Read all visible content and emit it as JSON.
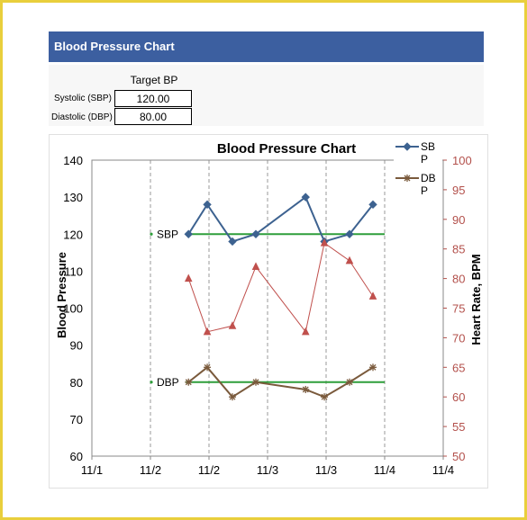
{
  "header": {
    "title": "Blood Pressure Chart"
  },
  "target": {
    "header": "Target BP",
    "systolic_label": "Systolic (SBP)",
    "systolic_value": "120.00",
    "diastolic_label": "Diastolic (DBP)",
    "diastolic_value": "80.00"
  },
  "chart_data": {
    "type": "line",
    "title": "Blood Pressure Chart",
    "ylabel": "Blood Pressure",
    "y2label": "Heart Rate, BPM",
    "ylim": [
      60,
      140
    ],
    "y2lim": [
      50,
      100
    ],
    "xlim": [
      0,
      6
    ],
    "x_ticks": [
      "11/1",
      "11/2",
      "11/2",
      "11/3",
      "11/3",
      "11/4",
      "11/4"
    ],
    "y_ticks": [
      "60",
      "70",
      "80",
      "90",
      "100",
      "110",
      "120",
      "130",
      "140"
    ],
    "y2_ticks": [
      "50",
      "55",
      "60",
      "65",
      "70",
      "75",
      "80",
      "85",
      "90",
      "95",
      "100"
    ],
    "grid": "vertical dashed",
    "legend": "top-right",
    "legend_entries": [
      "SB P",
      "DB P"
    ],
    "series": [
      {
        "name": "SBP",
        "axis": "left",
        "color": "#3d6290",
        "marker": "diamond",
        "x": [
          1.65,
          1.97,
          2.4,
          2.8,
          3.65,
          3.97,
          4.4,
          4.8
        ],
        "values": [
          120,
          128,
          118,
          120,
          130,
          118,
          120,
          128
        ]
      },
      {
        "name": "DBP",
        "axis": "left",
        "color": "#7a5a3c",
        "marker": "asterisk",
        "x": [
          1.65,
          1.97,
          2.4,
          2.8,
          3.65,
          3.97,
          4.4,
          4.8
        ],
        "values": [
          80,
          84,
          76,
          80,
          78,
          76,
          80,
          84
        ]
      },
      {
        "name": "Heart Rate",
        "axis": "right",
        "color": "#c0504d",
        "marker": "triangle",
        "x": [
          1.65,
          1.97,
          2.4,
          2.8,
          3.65,
          3.97,
          4.4,
          4.8
        ],
        "values": [
          80,
          71,
          72,
          82,
          71,
          86,
          83,
          77
        ]
      }
    ],
    "reference_lines": [
      {
        "label": "SBP",
        "value": 120,
        "color": "#2e9e3a"
      },
      {
        "label": "DBP",
        "value": 80,
        "color": "#2e9e3a"
      }
    ]
  }
}
